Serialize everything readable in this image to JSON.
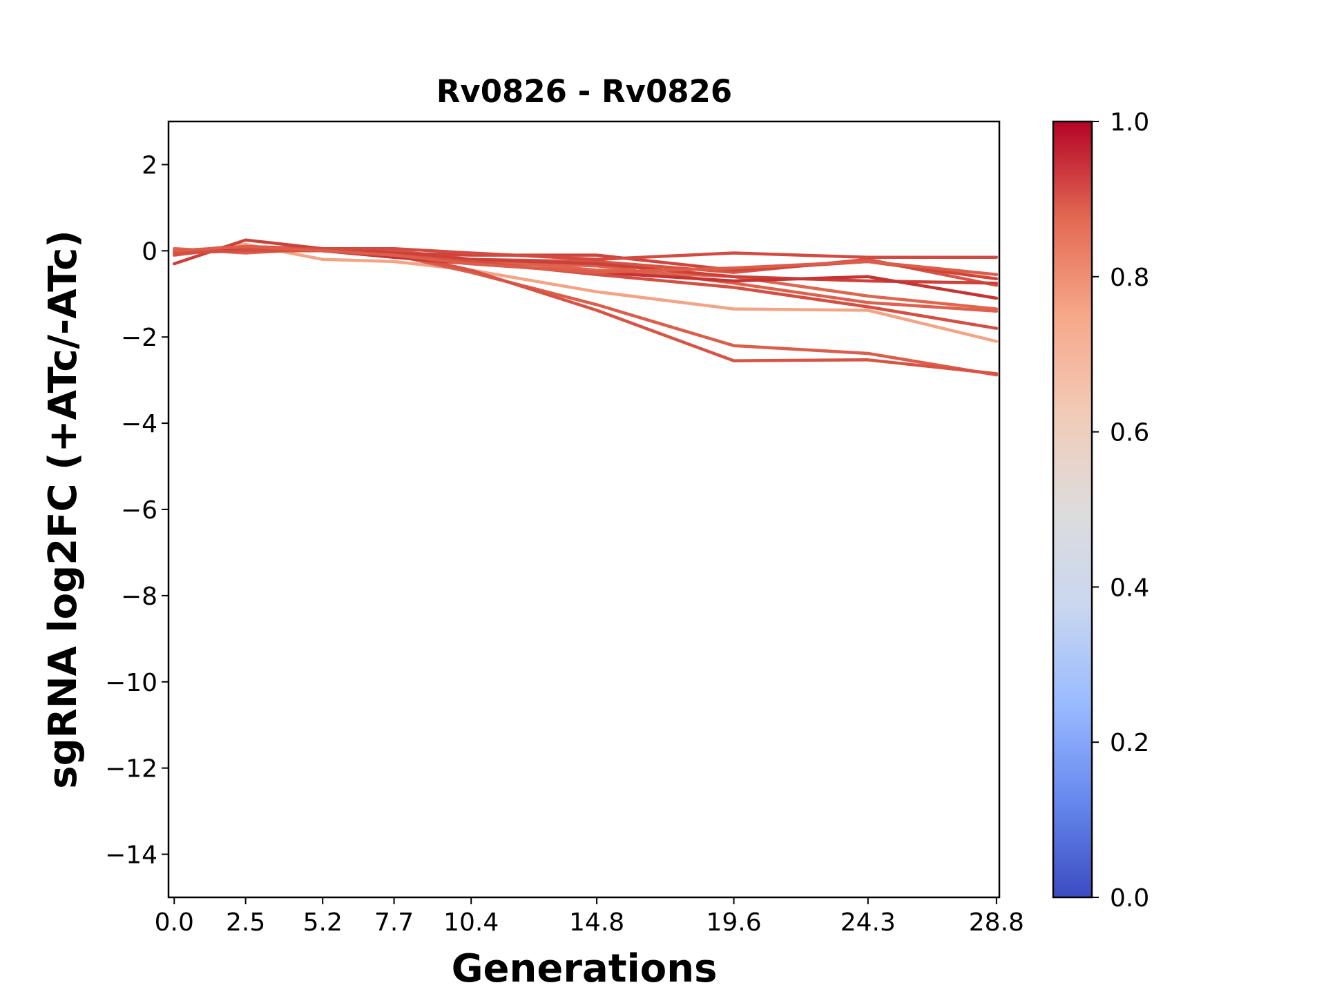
{
  "chart_data": {
    "type": "line",
    "title": "Rv0826 - Rv0826",
    "xlabel": "Generations",
    "ylabel": "sgRNA log2FC (+ATc/-ATc)",
    "x": [
      0.0,
      2.5,
      5.2,
      7.7,
      10.4,
      14.8,
      19.6,
      24.3,
      28.8
    ],
    "x_tick_labels": [
      "0.0",
      "2.5",
      "5.2",
      "7.7",
      "10.4",
      "14.8",
      "19.6",
      "24.3",
      "28.8"
    ],
    "xlim": [
      -0.2,
      28.9
    ],
    "ylim": [
      -15,
      3
    ],
    "y_ticks": [
      2,
      0,
      -2,
      -4,
      -6,
      -8,
      -10,
      -12,
      -14
    ],
    "y_tick_labels": [
      "2",
      "0",
      "−2",
      "−4",
      "−6",
      "−8",
      "−10",
      "−12",
      "−14"
    ],
    "colormap": "coolwarm",
    "colorbar": {
      "range": [
        0.0,
        1.0
      ],
      "ticks": [
        0.0,
        0.2,
        0.4,
        0.6,
        0.8,
        1.0
      ],
      "tick_labels": [
        "0.0",
        "0.2",
        "0.4",
        "0.6",
        "0.8",
        "1.0"
      ],
      "stops": [
        "#3b4cc0",
        "#6788ee",
        "#9abbff",
        "#c9d7f0",
        "#dddcdc",
        "#f2cbb7",
        "#f7a889",
        "#e26952",
        "#b40426"
      ]
    },
    "grid": false,
    "series": [
      {
        "color_value": 0.75,
        "color": "#f4a484",
        "values": [
          -0.05,
          0.15,
          -0.2,
          -0.25,
          -0.45,
          -0.95,
          -1.35,
          -1.38,
          -2.1
        ]
      },
      {
        "color_value": 0.88,
        "color": "#dc5d4a",
        "values": [
          0.0,
          0.05,
          0.0,
          -0.1,
          -0.5,
          -1.25,
          -2.2,
          -2.38,
          -2.88
        ]
      },
      {
        "color_value": 0.9,
        "color": "#d75445",
        "values": [
          -0.05,
          0.1,
          0.05,
          -0.05,
          -0.45,
          -1.38,
          -2.55,
          -2.53,
          -2.85
        ]
      },
      {
        "color_value": 0.86,
        "color": "#e0654f",
        "values": [
          0.05,
          -0.05,
          0.05,
          0.0,
          -0.2,
          -0.45,
          -0.6,
          -1.05,
          -1.35
        ]
      },
      {
        "color_value": 0.87,
        "color": "#de614d",
        "values": [
          0.0,
          0.0,
          0.0,
          -0.1,
          -0.25,
          -0.35,
          -0.75,
          -1.2,
          -1.4
        ]
      },
      {
        "color_value": 0.9,
        "color": "#d75445",
        "values": [
          -0.1,
          0.1,
          0.0,
          0.0,
          -0.2,
          -0.25,
          -0.5,
          -0.2,
          -0.8
        ]
      },
      {
        "color_value": 0.93,
        "color": "#cf453c",
        "values": [
          0.0,
          0.0,
          0.0,
          -0.05,
          -0.1,
          -0.1,
          -0.45,
          -0.25,
          -0.65
        ]
      },
      {
        "color_value": 0.94,
        "color": "#cc403a",
        "values": [
          -0.3,
          0.25,
          0.05,
          -0.05,
          -0.2,
          -0.3,
          -0.6,
          -0.7,
          -0.75
        ]
      },
      {
        "color_value": 0.92,
        "color": "#d24b40",
        "values": [
          0.0,
          0.05,
          0.05,
          0.05,
          -0.05,
          -0.2,
          -0.05,
          -0.15,
          -0.15
        ]
      },
      {
        "color_value": 0.96,
        "color": "#c53334",
        "values": [
          0.0,
          0.0,
          0.0,
          -0.15,
          -0.3,
          -0.5,
          -0.7,
          -0.6,
          -1.1
        ]
      },
      {
        "color_value": 0.91,
        "color": "#d44e41",
        "values": [
          -0.05,
          0.0,
          0.0,
          -0.1,
          -0.25,
          -0.55,
          -0.85,
          -1.3,
          -1.8
        ]
      },
      {
        "color_value": 0.88,
        "color": "#dc5d4a",
        "values": [
          0.0,
          0.1,
          0.0,
          -0.1,
          -0.3,
          -0.5,
          -0.4,
          -0.25,
          -0.55
        ]
      }
    ]
  }
}
